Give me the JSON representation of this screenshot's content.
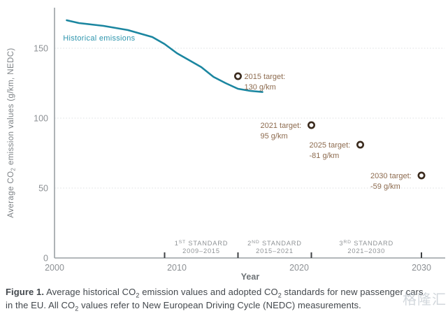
{
  "figure": {
    "caption_segments": [
      {
        "t": "Figure 1.",
        "bold": true
      },
      {
        "t": " Average historical CO"
      },
      {
        "t": "2",
        "sub": true
      },
      {
        "t": " emission values and adopted CO"
      },
      {
        "t": "2",
        "sub": true
      },
      {
        "t": " standards for new passenger cars in the EU. All CO"
      },
      {
        "t": "2",
        "sub": true
      },
      {
        "t": " values refer to New European Driving Cycle (NEDC) measurements."
      }
    ],
    "watermark": "格隆汇"
  },
  "chart_data": {
    "type": "line",
    "title": "",
    "xlabel": "Year",
    "ylabel": "Average CO2 emission values (g/km, NEDC)",
    "ylabel_segments": [
      {
        "t": "Average CO"
      },
      {
        "t": "2",
        "sub": true
      },
      {
        "t": " emission values (g/km, NEDC)"
      }
    ],
    "xlim": [
      2000,
      2032
    ],
    "ylim": [
      0,
      179
    ],
    "x_ticks": [
      "2000",
      "2010",
      "2020",
      "2030"
    ],
    "x_tick_years": [
      2000,
      2010,
      2020,
      2030
    ],
    "y_ticks": [
      0,
      50,
      100,
      150
    ],
    "y_gridlines": [
      50,
      100,
      150
    ],
    "grid_style": "dotted",
    "legend_position": "inline-label",
    "series": [
      {
        "name": "Historical emissions",
        "x": [
          2001,
          2002,
          2003,
          2004,
          2005,
          2006,
          2007,
          2008,
          2009,
          2010,
          2011,
          2012,
          2013,
          2014,
          2015,
          2016,
          2017
        ],
        "values": [
          170,
          168,
          167,
          166,
          164.5,
          163,
          160.5,
          158,
          153,
          146.5,
          141.5,
          136.5,
          129.5,
          125,
          121,
          119.5,
          118.7
        ]
      }
    ],
    "series_label": {
      "text": "Historical emissions",
      "year": 2000.7,
      "value": 155.5
    },
    "targets": [
      {
        "year": 2015,
        "value": 130,
        "label_line1": "2015 target:",
        "label_line2": "130 g/km",
        "label_side": "right"
      },
      {
        "year": 2021,
        "value": 95,
        "label_line1": "2021 target:",
        "label_line2": "95 g/km",
        "label_side": "left"
      },
      {
        "year": 2025,
        "value": 81,
        "label_line1": "2025 target:",
        "label_line2": "-81 g/km",
        "label_side": "left"
      },
      {
        "year": 2030,
        "value": 59,
        "label_line1": "2030 target:",
        "label_line2": "-59 g/km",
        "label_side": "left"
      }
    ],
    "standards": [
      {
        "prefix": "1",
        "sup": "ST",
        "suffix": " STANDARD",
        "range": "2009–2015",
        "from": 2009,
        "to": 2015
      },
      {
        "prefix": "2",
        "sup": "ND",
        "suffix": " STANDARD",
        "range": "2015–2021",
        "from": 2015,
        "to": 2021
      },
      {
        "prefix": "3",
        "sup": "RD",
        "suffix": " STANDARD",
        "range": "2021–2030",
        "from": 2021,
        "to": 2030
      }
    ],
    "boundary_tick_years": [
      2009,
      2015,
      2021,
      2030
    ],
    "colors": {
      "line": "#1b86a0",
      "series_label": "#2d95ad",
      "target_text": "#8d6b4f",
      "target_marker": "#3a2a1d",
      "axis": "#9aa0a4",
      "tick_text": "#8c9094",
      "grid": "#dcdfe1",
      "standard_text": "#8f9396",
      "boundary_tick": "#3f4245",
      "xlabel": "#6e7377",
      "ylabel": "#7d8286"
    }
  }
}
